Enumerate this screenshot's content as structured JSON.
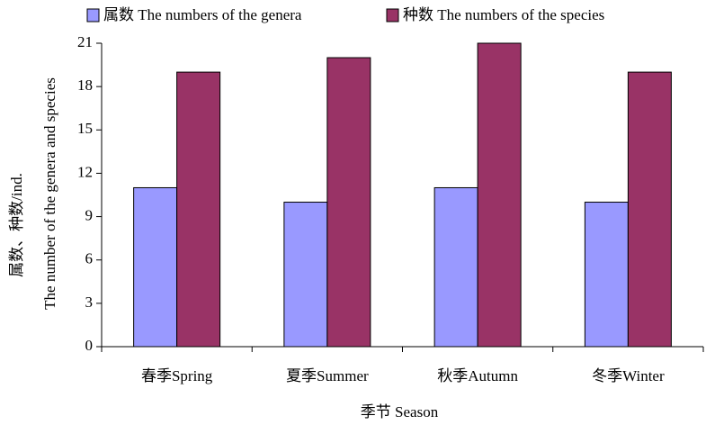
{
  "chart_data": {
    "type": "bar",
    "xlabel": "季节  Season",
    "ylabel": [
      "属数、种数/ind.",
      "The number of the genera and species"
    ],
    "categories": [
      "春季Spring",
      "夏季Summer",
      "秋季Autumn",
      "冬季Winter"
    ],
    "series": [
      {
        "name": "属数 The numbers of the genera",
        "color": "#9999ff",
        "values": [
          11,
          10,
          11,
          10
        ]
      },
      {
        "name": "种数 The numbers of the species",
        "color": "#993366",
        "values": [
          19,
          20,
          21,
          19
        ]
      }
    ],
    "ylim": [
      0,
      21
    ],
    "yticks": [
      0,
      3,
      6,
      9,
      12,
      15,
      18,
      21
    ],
    "grid": false,
    "legend": "top"
  }
}
